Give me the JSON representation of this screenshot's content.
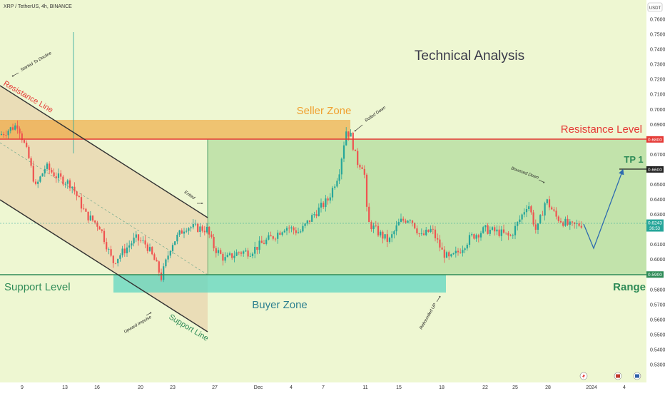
{
  "header": {
    "symbol_line": "XRP / TetherUS, 4h, BINANCE",
    "currency_badge": "USDT"
  },
  "chart_data": {
    "type": "candlestick",
    "title": "Technical Analysis",
    "y_axis": {
      "ylim": [
        0.525,
        0.77
      ],
      "ticks": [
        "0.7600",
        "0.7500",
        "0.7400",
        "0.7300",
        "0.7200",
        "0.7100",
        "0.7000",
        "0.6900",
        "0.6700",
        "0.6500",
        "0.6400",
        "0.6300",
        "0.6100",
        "0.6000",
        "0.5800",
        "0.5700",
        "0.5600",
        "0.5500",
        "0.5400",
        "0.5300"
      ]
    },
    "x_axis": {
      "ticks": [
        "9",
        "13",
        "16",
        "20",
        "23",
        "27",
        "Dec",
        "4",
        "7",
        "11",
        "15",
        "18",
        "22",
        "25",
        "28",
        "2024",
        "4"
      ]
    },
    "price_tags": [
      {
        "label": "0.6800",
        "value": 0.68,
        "color": "#e53935"
      },
      {
        "label": "0.6600",
        "value": 0.66,
        "color": "#222222"
      },
      {
        "label": "0.6243",
        "sublabel": "36:53",
        "value": 0.6243,
        "color": "#26a69a"
      },
      {
        "label": "0.5900",
        "value": 0.59,
        "color": "#2e8b57"
      }
    ],
    "levels": {
      "resistance": 0.68,
      "support": 0.59,
      "tp1": 0.66,
      "seller_zone": [
        0.68,
        0.693
      ],
      "buyer_zone": [
        0.5775,
        0.59
      ]
    },
    "annotations": {
      "seller_zone": "Seller Zone",
      "buyer_zone": "Buyer Zone",
      "resistance_level": "Resistance Level",
      "support_level": "Support Level",
      "tp1": "TP 1",
      "range": "Range",
      "resistance_line": "Resistance Line",
      "support_line": "Support Line",
      "started_to_decline": "Started To Decline",
      "exited": "Exited",
      "upward_impulse": "Upward Impulse",
      "rolled_down": "Rolled Down",
      "bounced_down": "Bounced Down",
      "rebounded_up": "Rebounded UP"
    },
    "colors": {
      "up": "#26a69a",
      "down": "#ef5350",
      "resistance": "#e53935",
      "support": "#2e8b57",
      "seller_zone": "#f0a030",
      "buyer_zone": "#5fd6c0",
      "range_fill": "#9fd48a",
      "channel_fill": "#e7c9a0"
    }
  }
}
